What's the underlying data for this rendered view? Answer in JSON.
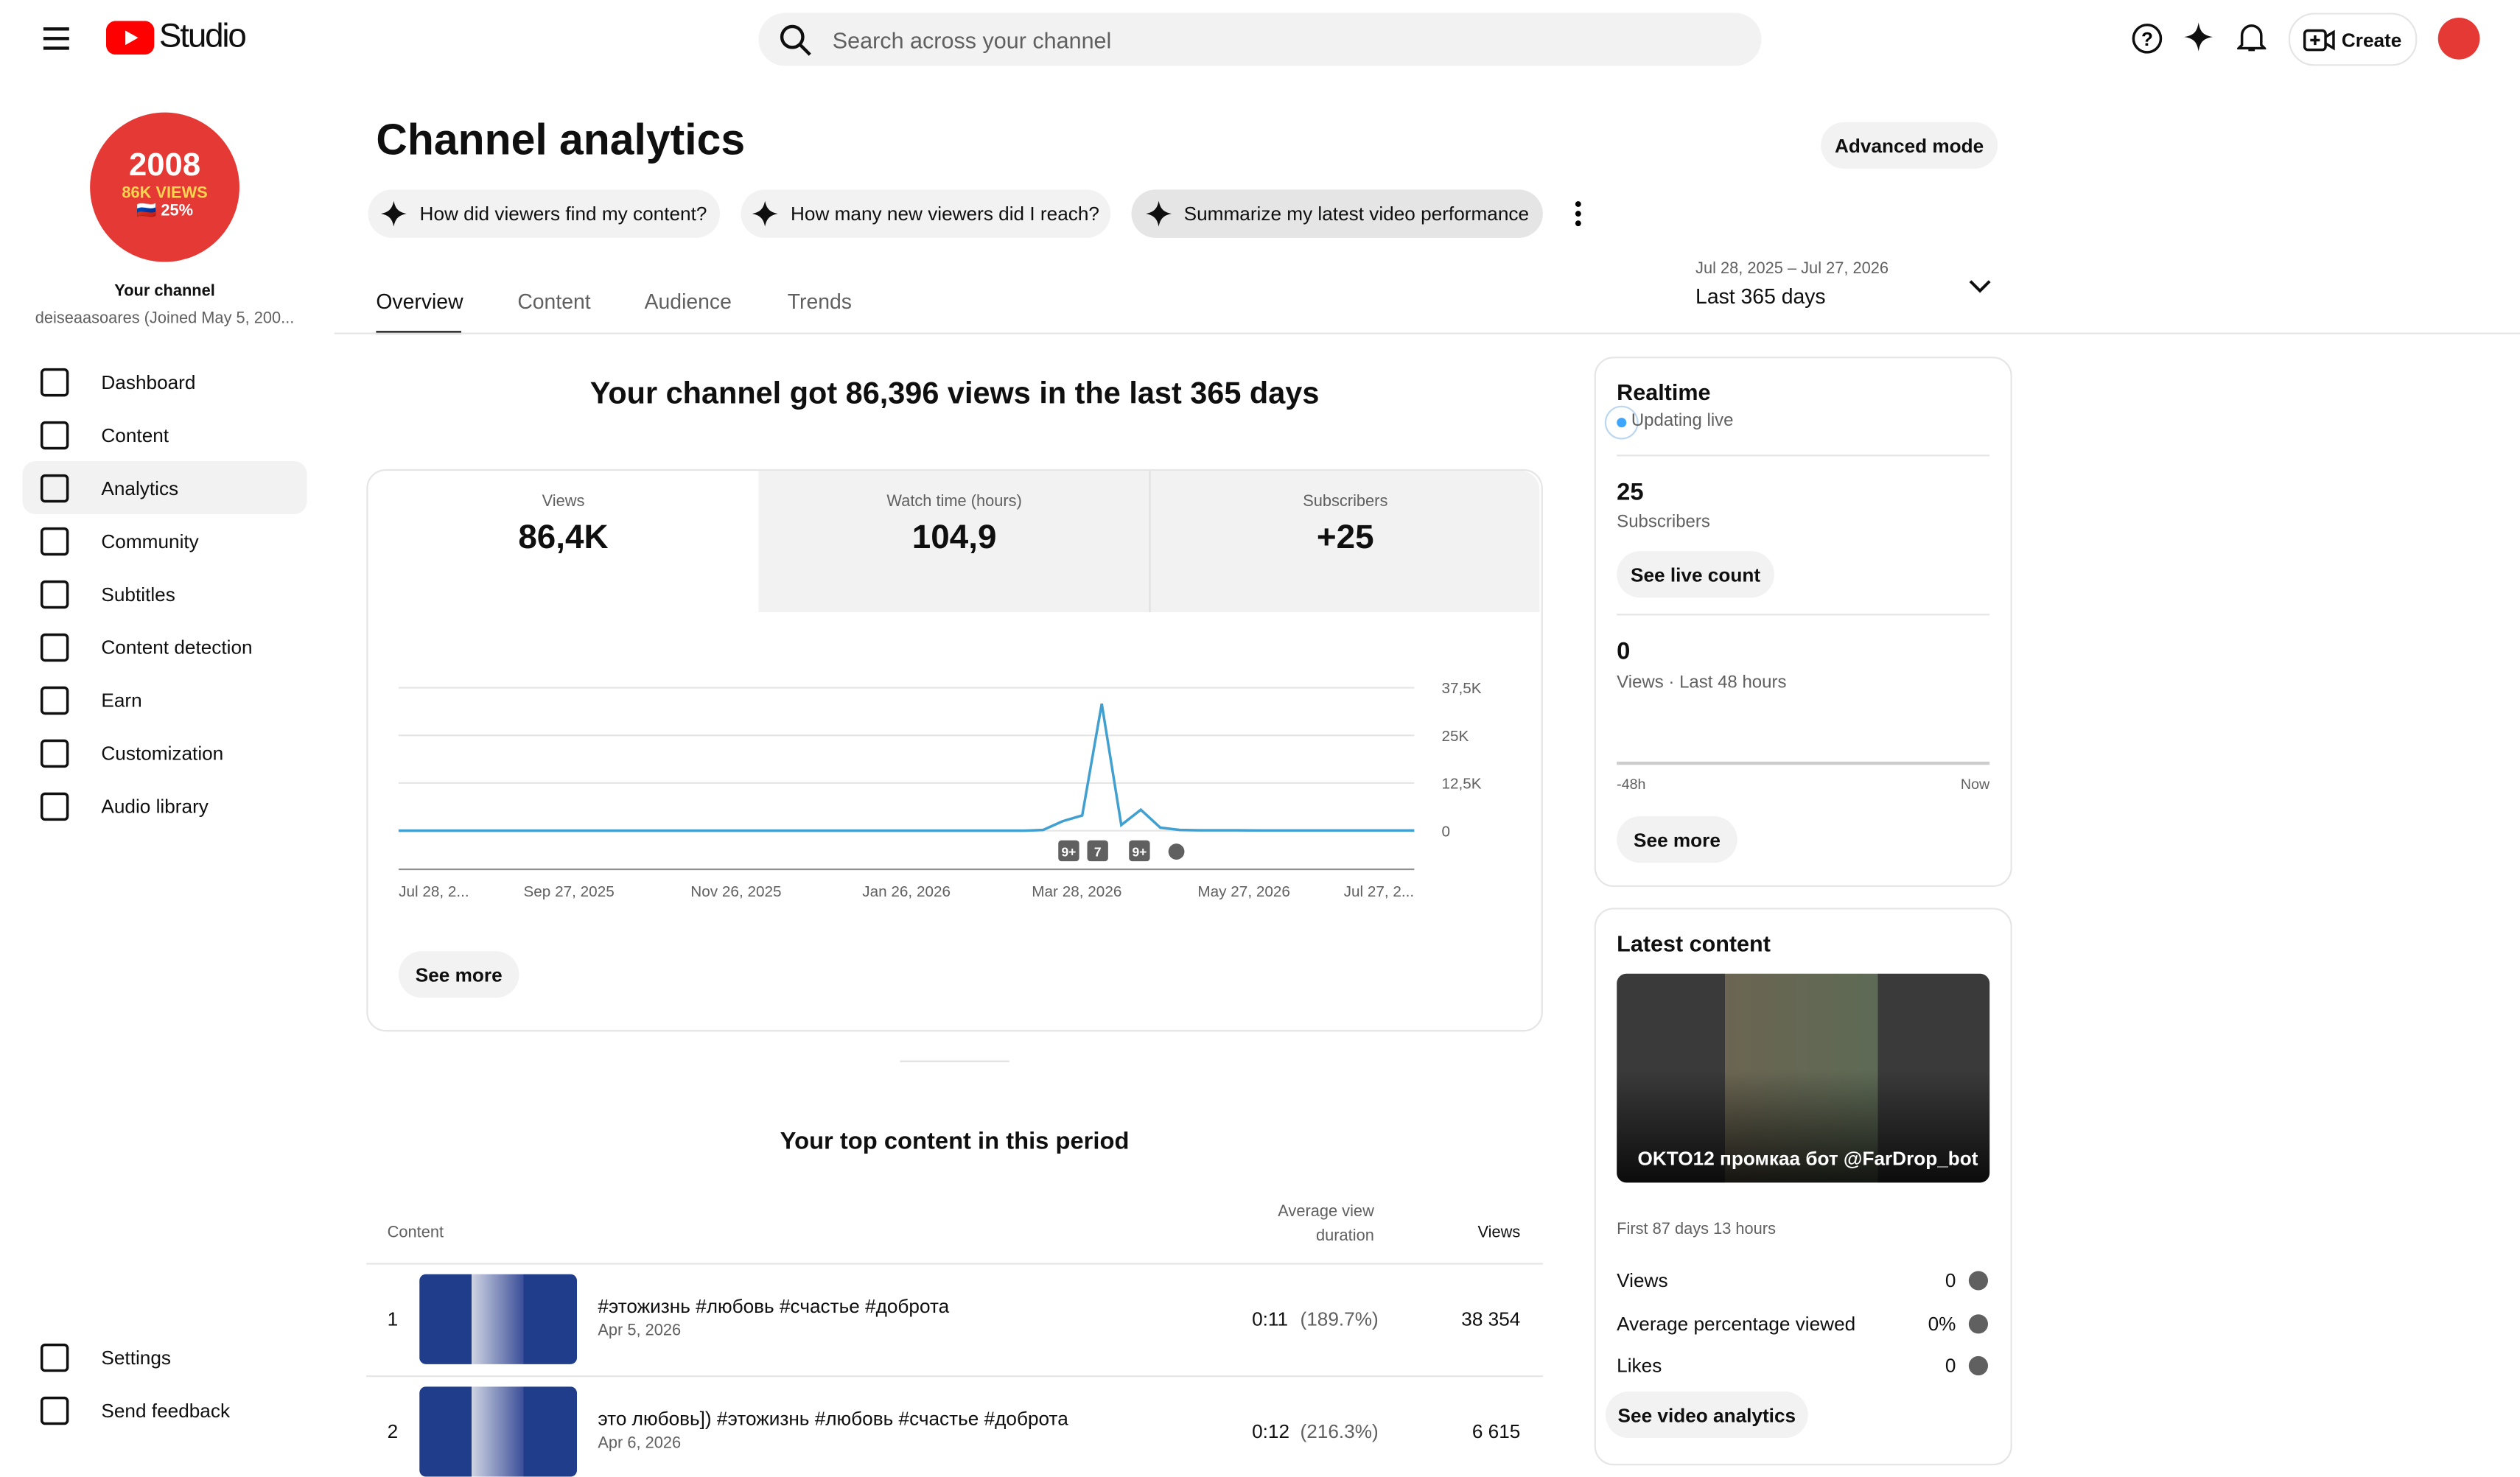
{
  "header": {
    "logo": "Studio",
    "search_placeholder": "Search across your channel",
    "create": "Create"
  },
  "sidebar": {
    "avatar_lines": [
      "2008",
      "86K VIEWS",
      "🇷🇺 25%"
    ],
    "channel_label": "Your channel",
    "channel_name": "deiseaasoares (Joined May 5, 200...",
    "nav": [
      "Dashboard",
      "Content",
      "Analytics",
      "Community",
      "Subtitles",
      "Content detection",
      "Earn",
      "Customization",
      "Audio library"
    ],
    "footer_nav": [
      "Settings",
      "Send feedback"
    ]
  },
  "page": {
    "title": "Channel analytics",
    "advanced_mode": "Advanced mode",
    "chips": [
      "How did viewers find my content?",
      "How many new viewers did I reach?",
      "Summarize my latest video performance"
    ],
    "tabs": [
      "Overview",
      "Content",
      "Audience",
      "Trends"
    ],
    "date_range": "Jul 28, 2025 – Jul 27, 2026",
    "period": "Last 365 days"
  },
  "summary": {
    "headline": "Your channel got 86,396 views in the last 365 days",
    "metrics": [
      {
        "label": "Views",
        "value": "86,4K"
      },
      {
        "label": "Watch time (hours)",
        "value": "104,9"
      },
      {
        "label": "Subscribers",
        "value": "+25"
      }
    ],
    "see_more": "See more"
  },
  "chart": {
    "type": "line",
    "color": "#41a0d0",
    "x_labels": [
      "Jul 28, 2...",
      "Sep 27, 2025",
      "Nov 26, 2025",
      "Jan 26, 2026",
      "Mar 28, 2026",
      "May 27, 2026",
      "Jul 27, 2..."
    ],
    "values": [
      0,
      0,
      0,
      0,
      0,
      0,
      0,
      0,
      0,
      0,
      0,
      0,
      0,
      0,
      0,
      0,
      0,
      0,
      0,
      0,
      0,
      0,
      0,
      0,
      0,
      0,
      0,
      0,
      0,
      0,
      0,
      0,
      0,
      200,
      2500,
      4000,
      33300,
      1500,
      5500,
      800,
      200,
      100,
      100,
      100,
      50,
      50,
      50,
      50,
      50,
      50,
      50,
      50,
      50
    ],
    "ylim": [
      0,
      37500
    ],
    "yticks": [
      {
        "value": 37500,
        "label": "37,5K"
      },
      {
        "value": 25000,
        "label": "25K"
      },
      {
        "value": 12500,
        "label": "12,5K"
      },
      0
    ],
    "grid": true,
    "markers": [
      "9+",
      "7",
      "9+"
    ]
  },
  "top_content": {
    "title": "Your top content in this period",
    "columns": [
      "Content",
      "Average view duration",
      "Views"
    ],
    "rows": [
      {
        "rank": "1",
        "title": "#этожизнь #любовь #счастье #доброта",
        "date": "Apr 5, 2026",
        "duration": "0:11",
        "percent": "(189.7%)",
        "views": "38 354"
      },
      {
        "rank": "2",
        "title": "это любовь]) #этожизнь #любовь #счастье #доброта",
        "date": "Apr 6, 2026",
        "duration": "0:12",
        "percent": "(216.3%)",
        "views": "6 615"
      }
    ]
  },
  "realtime": {
    "title": "Realtime",
    "status": "Updating live",
    "subscribers": "25",
    "subscribers_label": "Subscribers",
    "see_live_count": "See live count",
    "views": "0",
    "views_label": "Views · Last 48 hours",
    "axis_start": "-48h",
    "axis_end": "Now",
    "see_more": "See more"
  },
  "latest": {
    "title": "Latest content",
    "video_title": "OKTO12 промкаа бот @FarDrop_bot",
    "age": "First 87 days 13 hours",
    "stats": [
      {
        "label": "Views",
        "value": "0"
      },
      {
        "label": "Average percentage viewed",
        "value": "0%"
      },
      {
        "label": "Likes",
        "value": "0"
      }
    ],
    "button": "See video analytics"
  }
}
